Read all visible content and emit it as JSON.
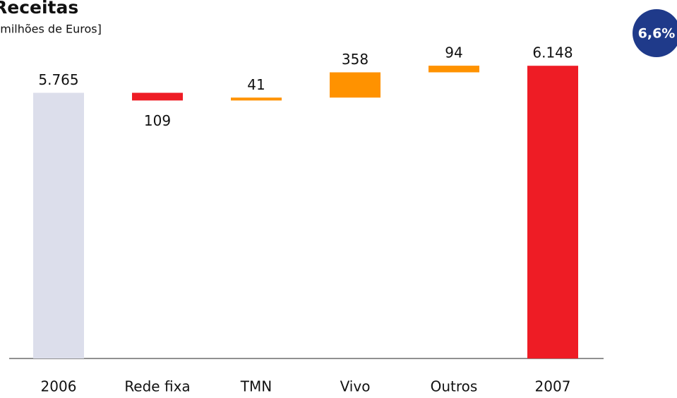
{
  "chart_data": {
    "type": "waterfall",
    "title": "Receitas",
    "subtitle": "[milhões de Euros]",
    "annotation": "6,6%",
    "categories": [
      "2006",
      "Rede fixa",
      "TMN",
      "Vivo",
      "Outros",
      "2007"
    ],
    "values": [
      5765,
      -109,
      41,
      358,
      94,
      6148
    ],
    "value_labels": [
      "5.765",
      "109",
      "41",
      "358",
      "94",
      "6.148"
    ],
    "colors": [
      "#dcdeeb",
      "#ee1c25",
      "#ff9200",
      "#ff9200",
      "#ff9200",
      "#ee1c25"
    ],
    "ylim": [
      2000,
      6500
    ]
  }
}
